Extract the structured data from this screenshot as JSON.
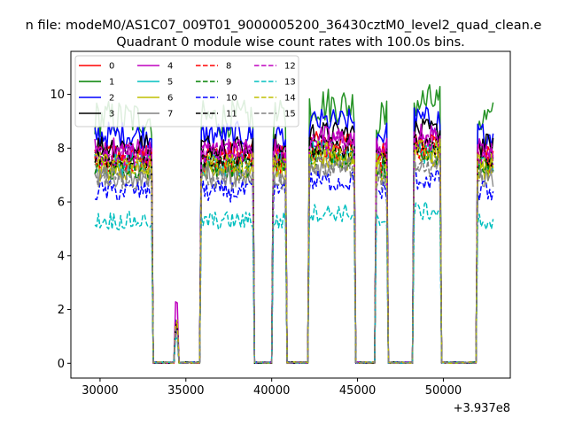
{
  "chart_data": {
    "type": "line",
    "suptitle": "n file: modeM0/AS1C07_009T01_9000005200_36430cztM0_level2_quad_clean.e",
    "title": "Quadrant 0 module wise count rates with 100.0s bins.",
    "xlabel": "",
    "ylabel": "",
    "x_offset_label": "+3.937e8",
    "xlim": [
      28300,
      53900
    ],
    "ylim": [
      -0.55,
      11.6
    ],
    "x_ticks": [
      {
        "value": 30000,
        "label": "30000"
      },
      {
        "value": 35000,
        "label": "35000"
      },
      {
        "value": 40000,
        "label": "40000"
      },
      {
        "value": 45000,
        "label": "45000"
      },
      {
        "value": 50000,
        "label": "50000"
      }
    ],
    "y_ticks": [
      {
        "value": 0,
        "label": "0"
      },
      {
        "value": 2,
        "label": "2"
      },
      {
        "value": 4,
        "label": "4"
      },
      {
        "value": 6,
        "label": "6"
      },
      {
        "value": 8,
        "label": "8"
      },
      {
        "value": 10,
        "label": "10"
      }
    ],
    "grid": false,
    "legend_position": "top-left",
    "x_range": [
      29700,
      52900
    ],
    "bin_width": 100,
    "on_segments": [
      [
        29700,
        33000
      ],
      [
        34400,
        34500
      ],
      [
        35900,
        38900
      ],
      [
        40100,
        40800
      ],
      [
        42200,
        44800
      ],
      [
        46100,
        46700
      ],
      [
        48300,
        49800
      ],
      [
        52000,
        52900
      ]
    ],
    "off_level": 0.05,
    "series": [
      {
        "name": "0",
        "color": "#ff0000",
        "dash": "solid",
        "level": 7.8,
        "noise": 0.45,
        "spike": 1.4
      },
      {
        "name": "1",
        "color": "#008000",
        "dash": "solid",
        "level": 9.1,
        "noise": 0.7,
        "spike": 1.6
      },
      {
        "name": "2",
        "color": "#0000ff",
        "dash": "solid",
        "level": 8.5,
        "noise": 0.5,
        "spike": 1.5
      },
      {
        "name": "3",
        "color": "#000000",
        "dash": "solid",
        "level": 8.1,
        "noise": 0.45,
        "spike": 1.5
      },
      {
        "name": "4",
        "color": "#bf00bf",
        "dash": "solid",
        "level": 7.9,
        "noise": 0.5,
        "spike": 2.3
      },
      {
        "name": "5",
        "color": "#00bfbf",
        "dash": "solid",
        "level": 7.4,
        "noise": 0.45,
        "spike": 1.4
      },
      {
        "name": "6",
        "color": "#bfbf00",
        "dash": "solid",
        "level": 7.2,
        "noise": 0.45,
        "spike": 1.4
      },
      {
        "name": "7",
        "color": "#808080",
        "dash": "solid",
        "level": 7.0,
        "noise": 0.45,
        "spike": 1.3
      },
      {
        "name": "8",
        "color": "#ff0000",
        "dash": "dashed",
        "level": 7.5,
        "noise": 0.45,
        "spike": 1.4
      },
      {
        "name": "9",
        "color": "#008000",
        "dash": "dashed",
        "level": 7.3,
        "noise": 0.45,
        "spike": 1.3
      },
      {
        "name": "10",
        "color": "#0000ff",
        "dash": "dashed",
        "level": 6.4,
        "noise": 0.4,
        "spike": 1.2
      },
      {
        "name": "11",
        "color": "#000000",
        "dash": "dashed",
        "level": 7.6,
        "noise": 0.4,
        "spike": 1.4
      },
      {
        "name": "12",
        "color": "#bf00bf",
        "dash": "dashed",
        "level": 7.8,
        "noise": 0.45,
        "spike": 1.4
      },
      {
        "name": "13",
        "color": "#00bfbf",
        "dash": "dashed",
        "level": 5.3,
        "noise": 0.35,
        "spike": 1.0
      },
      {
        "name": "14",
        "color": "#bfbf00",
        "dash": "dashed",
        "level": 7.4,
        "noise": 0.45,
        "spike": 1.6
      },
      {
        "name": "15",
        "color": "#808080",
        "dash": "dashed",
        "level": 6.9,
        "noise": 0.45,
        "spike": 1.3
      }
    ]
  }
}
